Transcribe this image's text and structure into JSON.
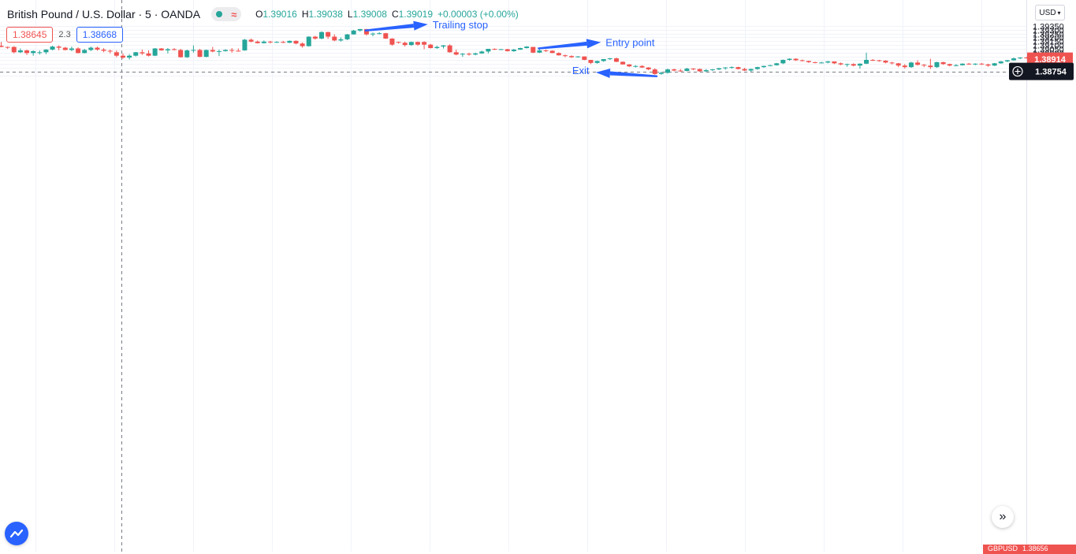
{
  "header": {
    "title": "British Pound / U.S. Dollar · 5 · OANDA",
    "status_icon": "market-open-dot-icon",
    "replay_icon": "wave-icon",
    "replay_glyph": "≈",
    "ohlc": {
      "o_label": "O",
      "o_value": "1.39016",
      "h_label": "H",
      "h_value": "1.39038",
      "l_label": "L",
      "l_value": "1.39008",
      "c_label": "C",
      "c_value": "1.39019",
      "change": "+0.00003 (+0.00%)"
    }
  },
  "trade": {
    "sell": "1.38645",
    "spread": "2.3",
    "buy": "1.38668"
  },
  "currency": "USD",
  "scroll_glyph": "»",
  "bottom_tag": {
    "symbol": "GBPUSD",
    "price": "1.38656"
  },
  "colors": {
    "up": "#26a69a",
    "down": "#ef5350",
    "annotation": "#2962ff",
    "grid": "#f0f3fa"
  },
  "chart_data": {
    "type": "candlestick",
    "ylim": [
      1.3865,
      1.3935
    ],
    "yticks": [
      "1.39350",
      "1.39300",
      "1.39250",
      "1.39200",
      "1.39150",
      "1.39100",
      "1.39050",
      "1.39000",
      "1.38950",
      "1.38900",
      "1.38850",
      "1.38800",
      "1.38750",
      "1.38700"
    ],
    "last_price": "1.38914",
    "crosshair_price": "1.38754",
    "crosshair_icon": "crosshair-plus-icon",
    "annotations": [
      {
        "text": "Trailing stop",
        "candle": 56
      },
      {
        "text": "Entry point",
        "candle": 83
      },
      {
        "text": "Exit",
        "candle": 103
      }
    ],
    "candles": [
      [
        1.3909,
        1.3914,
        1.3907,
        1.39075
      ],
      [
        1.39075,
        1.3908,
        1.3905,
        1.3907
      ],
      [
        1.39075,
        1.39085,
        1.3899,
        1.39005
      ],
      [
        1.39005,
        1.39055,
        1.38995,
        1.3903
      ],
      [
        1.3903,
        1.3904,
        1.3897,
        1.38995
      ],
      [
        1.38995,
        1.3903,
        1.3896,
        1.3902
      ],
      [
        1.38995,
        1.3903,
        1.38975,
        1.39005
      ],
      [
        1.39005,
        1.39045,
        1.3898,
        1.3904
      ],
      [
        1.3904,
        1.3909,
        1.3903,
        1.3908
      ],
      [
        1.3908,
        1.39095,
        1.3903,
        1.39065
      ],
      [
        1.39065,
        1.39075,
        1.3903,
        1.39035
      ],
      [
        1.39035,
        1.3908,
        1.3902,
        1.39055
      ],
      [
        1.39055,
        1.3907,
        1.3899,
        1.38995
      ],
      [
        1.38995,
        1.3905,
        1.3899,
        1.39035
      ],
      [
        1.39035,
        1.3908,
        1.3902,
        1.39065
      ],
      [
        1.39065,
        1.3908,
        1.39025,
        1.3904
      ],
      [
        1.3904,
        1.3906,
        1.39005,
        1.39025
      ],
      [
        1.39025,
        1.3904,
        1.3899,
        1.39015
      ],
      [
        1.39005,
        1.3903,
        1.3894,
        1.3896
      ],
      [
        1.3896,
        1.3899,
        1.3892,
        1.38935
      ],
      [
        1.38935,
        1.3898,
        1.3891,
        1.3896
      ],
      [
        1.3896,
        1.3901,
        1.3895,
        1.39005
      ],
      [
        1.39005,
        1.3904,
        1.3897,
        1.3899
      ],
      [
        1.3899,
        1.3903,
        1.3895,
        1.3896
      ],
      [
        1.3896,
        1.3906,
        1.38955,
        1.39055
      ],
      [
        1.39055,
        1.3906,
        1.39025,
        1.3903
      ],
      [
        1.3903,
        1.3906,
        1.3899,
        1.39045
      ],
      [
        1.39045,
        1.3906,
        1.3903,
        1.39035
      ],
      [
        1.39035,
        1.3905,
        1.38935,
        1.3894
      ],
      [
        1.3894,
        1.3904,
        1.3893,
        1.3903
      ],
      [
        1.3903,
        1.39095,
        1.39,
        1.39035
      ],
      [
        1.39035,
        1.3905,
        1.3894,
        1.38945
      ],
      [
        1.38945,
        1.3904,
        1.3894,
        1.39035
      ],
      [
        1.39035,
        1.39075,
        1.39005,
        1.39015
      ],
      [
        1.39015,
        1.3904,
        1.38955,
        1.3902
      ],
      [
        1.3902,
        1.39045,
        1.39015,
        1.39035
      ],
      [
        1.39035,
        1.3906,
        1.39,
        1.39025
      ],
      [
        1.39025,
        1.39055,
        1.39015,
        1.3902
      ],
      [
        1.3903,
        1.3918,
        1.39025,
        1.3917
      ],
      [
        1.3917,
        1.39185,
        1.39135,
        1.39145
      ],
      [
        1.39145,
        1.3916,
        1.3912,
        1.39125
      ],
      [
        1.39125,
        1.3916,
        1.3912,
        1.39145
      ],
      [
        1.39145,
        1.39155,
        1.3912,
        1.39135
      ],
      [
        1.39135,
        1.3915,
        1.3913,
        1.3914
      ],
      [
        1.3914,
        1.39155,
        1.39125,
        1.3913
      ],
      [
        1.3913,
        1.3916,
        1.39125,
        1.39155
      ],
      [
        1.39155,
        1.3916,
        1.3911,
        1.3912
      ],
      [
        1.3912,
        1.39135,
        1.39065,
        1.39085
      ],
      [
        1.39085,
        1.39215,
        1.3908,
        1.3921
      ],
      [
        1.3921,
        1.3922,
        1.3917,
        1.39185
      ],
      [
        1.39185,
        1.3928,
        1.39175,
        1.3927
      ],
      [
        1.3927,
        1.39275,
        1.3918,
        1.3921
      ],
      [
        1.3921,
        1.3924,
        1.3915,
        1.3916
      ],
      [
        1.3916,
        1.392,
        1.39145,
        1.39175
      ],
      [
        1.39175,
        1.39245,
        1.39165,
        1.3924
      ],
      [
        1.3924,
        1.393,
        1.39235,
        1.3929
      ],
      [
        1.3929,
        1.3931,
        1.39275,
        1.3931
      ],
      [
        1.3931,
        1.3931,
        1.39225,
        1.3924
      ],
      [
        1.3924,
        1.39265,
        1.39215,
        1.3925
      ],
      [
        1.3925,
        1.3927,
        1.3924,
        1.39255
      ],
      [
        1.39255,
        1.3926,
        1.3918,
        1.39185
      ],
      [
        1.39185,
        1.3919,
        1.3909,
        1.39105
      ],
      [
        1.3914,
        1.39145,
        1.3912,
        1.3913
      ],
      [
        1.3913,
        1.39145,
        1.3908,
        1.391
      ],
      [
        1.391,
        1.39145,
        1.3909,
        1.3914
      ],
      [
        1.3914,
        1.39145,
        1.3909,
        1.39105
      ],
      [
        1.3914,
        1.3915,
        1.39045,
        1.39105
      ],
      [
        1.39105,
        1.39115,
        1.39055,
        1.3906
      ],
      [
        1.3906,
        1.3909,
        1.3905,
        1.39075
      ],
      [
        1.3908,
        1.391,
        1.39055,
        1.39095
      ],
      [
        1.39095,
        1.3911,
        1.39,
        1.39005
      ],
      [
        1.39005,
        1.3904,
        1.38965,
        1.38975
      ],
      [
        1.38975,
        1.38995,
        1.38945,
        1.38985
      ],
      [
        1.38985,
        1.39,
        1.3896,
        1.38975
      ],
      [
        1.38975,
        1.39,
        1.38965,
        1.3899
      ],
      [
        1.3899,
        1.39025,
        1.38985,
        1.39015
      ],
      [
        1.39015,
        1.39045,
        1.3899,
        1.3905
      ],
      [
        1.3905,
        1.39055,
        1.39035,
        1.39045
      ],
      [
        1.39045,
        1.3905,
        1.3904,
        1.39045
      ],
      [
        1.39045,
        1.3905,
        1.39015,
        1.3902
      ],
      [
        1.3902,
        1.3905,
        1.3901,
        1.3904
      ],
      [
        1.3904,
        1.39065,
        1.39035,
        1.3906
      ],
      [
        1.3906,
        1.39085,
        1.39055,
        1.3908
      ],
      [
        1.39075,
        1.39075,
        1.38995,
        1.39
      ],
      [
        1.39,
        1.39045,
        1.38995,
        1.3903
      ],
      [
        1.3903,
        1.3904,
        1.3901,
        1.39025
      ],
      [
        1.39025,
        1.3903,
        1.38995,
        1.38995
      ],
      [
        1.38995,
        1.39005,
        1.3896,
        1.38965
      ],
      [
        1.38965,
        1.38975,
        1.3894,
        1.38955
      ],
      [
        1.38955,
        1.38965,
        1.3893,
        1.3894
      ],
      [
        1.3894,
        1.38955,
        1.38935,
        1.3895
      ],
      [
        1.3895,
        1.3895,
        1.389,
        1.38905
      ],
      [
        1.38905,
        1.38905,
        1.3885,
        1.38865
      ],
      [
        1.38865,
        1.38895,
        1.38855,
        1.3889
      ],
      [
        1.3889,
        1.38915,
        1.3888,
        1.38915
      ],
      [
        1.38915,
        1.3893,
        1.38905,
        1.38925
      ],
      [
        1.38925,
        1.38935,
        1.38875,
        1.3888
      ],
      [
        1.3888,
        1.38885,
        1.38845,
        1.38845
      ],
      [
        1.38845,
        1.3885,
        1.3881,
        1.3882
      ],
      [
        1.3882,
        1.38835,
        1.38805,
        1.38825
      ],
      [
        1.38825,
        1.38835,
        1.388,
        1.38805
      ],
      [
        1.38805,
        1.3881,
        1.3877,
        1.3878
      ],
      [
        1.3878,
        1.38795,
        1.3871,
        1.3872
      ],
      [
        1.3872,
        1.3875,
        1.3871,
        1.38735
      ],
      [
        1.38735,
        1.3879,
        1.38725,
        1.3878
      ],
      [
        1.3878,
        1.3879,
        1.38755,
        1.38765
      ],
      [
        1.38765,
        1.38785,
        1.3875,
        1.3876
      ],
      [
        1.3876,
        1.388,
        1.38755,
        1.3879
      ],
      [
        1.3879,
        1.38795,
        1.3877,
        1.38785
      ],
      [
        1.38785,
        1.3879,
        1.3875,
        1.38755
      ],
      [
        1.38755,
        1.38785,
        1.38745,
        1.3877
      ],
      [
        1.3877,
        1.38785,
        1.3876,
        1.3878
      ],
      [
        1.3878,
        1.388,
        1.3877,
        1.38795
      ],
      [
        1.38795,
        1.3881,
        1.38775,
        1.38805
      ],
      [
        1.38805,
        1.3882,
        1.3879,
        1.3881
      ],
      [
        1.3881,
        1.38815,
        1.3878,
        1.38785
      ],
      [
        1.38785,
        1.388,
        1.3876,
        1.38765
      ],
      [
        1.38765,
        1.3879,
        1.3875,
        1.38785
      ],
      [
        1.38785,
        1.38815,
        1.38775,
        1.3881
      ],
      [
        1.3881,
        1.3883,
        1.388,
        1.38825
      ],
      [
        1.38825,
        1.3884,
        1.3882,
        1.38835
      ],
      [
        1.38835,
        1.38865,
        1.3883,
        1.3886
      ],
      [
        1.3886,
        1.3891,
        1.3885,
        1.38905
      ],
      [
        1.38905,
        1.38925,
        1.38895,
        1.3892
      ],
      [
        1.3892,
        1.38925,
        1.3889,
        1.389
      ],
      [
        1.389,
        1.3891,
        1.38885,
        1.3889
      ],
      [
        1.3889,
        1.38895,
        1.38865,
        1.38875
      ],
      [
        1.38875,
        1.3888,
        1.3886,
        1.38865
      ],
      [
        1.38865,
        1.3888,
        1.3886,
        1.3887
      ],
      [
        1.3887,
        1.3889,
        1.3886,
        1.38885
      ],
      [
        1.38885,
        1.38885,
        1.3885,
        1.3886
      ],
      [
        1.3886,
        1.3887,
        1.38835,
        1.38845
      ],
      [
        1.38845,
        1.38855,
        1.38815,
        1.3885
      ],
      [
        1.3885,
        1.3886,
        1.3882,
        1.3883
      ],
      [
        1.3883,
        1.3886,
        1.3879,
        1.38855
      ],
      [
        1.38855,
        1.39,
        1.3885,
        1.38905
      ],
      [
        1.38905,
        1.38915,
        1.3889,
        1.389
      ],
      [
        1.389,
        1.38905,
        1.3888,
        1.38895
      ],
      [
        1.38895,
        1.389,
        1.3886,
        1.3887
      ],
      [
        1.3887,
        1.3888,
        1.38845,
        1.3886
      ],
      [
        1.3886,
        1.38865,
        1.3881,
        1.3883
      ],
      [
        1.3883,
        1.3885,
        1.3879,
        1.3881
      ],
      [
        1.3881,
        1.3888,
        1.388,
        1.3887
      ],
      [
        1.3887,
        1.389,
        1.3883,
        1.3884
      ],
      [
        1.3884,
        1.3885,
        1.3881,
        1.3883
      ],
      [
        1.3883,
        1.3892,
        1.38785,
        1.3881
      ],
      [
        1.3881,
        1.3888,
        1.388,
        1.38875
      ],
      [
        1.38875,
        1.3888,
        1.3884,
        1.3885
      ],
      [
        1.3885,
        1.38855,
        1.3882,
        1.3883
      ],
      [
        1.3883,
        1.3885,
        1.3882,
        1.38835
      ],
      [
        1.38835,
        1.3886,
        1.3883,
        1.38855
      ],
      [
        1.38855,
        1.38865,
        1.3884,
        1.38845
      ],
      [
        1.38845,
        1.3886,
        1.38835,
        1.38855
      ],
      [
        1.38855,
        1.38865,
        1.3884,
        1.38845
      ],
      [
        1.38845,
        1.38855,
        1.38815,
        1.3883
      ],
      [
        1.3883,
        1.38865,
        1.38825,
        1.3886
      ],
      [
        1.3886,
        1.3889,
        1.38855,
        1.38885
      ],
      [
        1.38885,
        1.38905,
        1.38875,
        1.389
      ],
      [
        1.389,
        1.38935,
        1.38895,
        1.38925
      ],
      [
        1.38925,
        1.3894,
        1.38915,
        1.38935
      ],
      [
        1.38935,
        1.38945,
        1.38925,
        1.3893
      ],
      [
        1.3893,
        1.38965,
        1.38925,
        1.38935
      ],
      [
        1.38935,
        1.3894,
        1.38915,
        1.38925
      ],
      [
        1.38925,
        1.38935,
        1.38915,
        1.3892
      ]
    ]
  }
}
